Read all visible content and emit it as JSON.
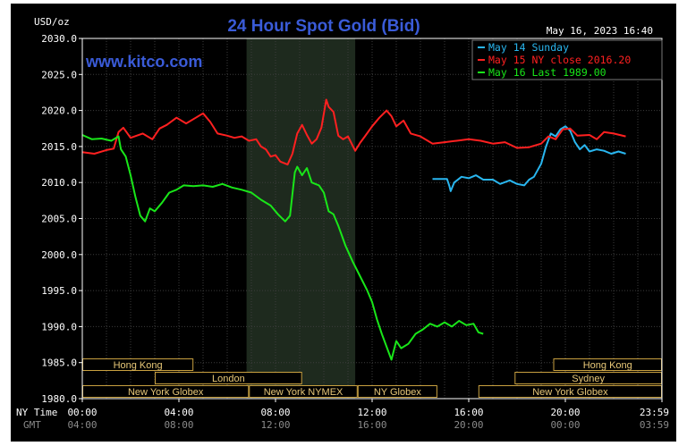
{
  "chart_data": {
    "type": "line",
    "title": "24 Hour Spot Gold (Bid)",
    "watermark": "www.kitco.com",
    "timestamp": "May 16, 2023 16:40",
    "ylabel": "USD/oz",
    "ylim": [
      1980,
      2030
    ],
    "y_ticks": [
      "2030.0",
      "2025.0",
      "2020.0",
      "2015.0",
      "2010.0",
      "2005.0",
      "2000.0",
      "1995.0",
      "1990.0",
      "1985.0",
      "1980.0"
    ],
    "xlim": [
      0,
      24
    ],
    "x_row_label_ny": "NY Time",
    "x_row_label_gmt": "GMT",
    "x_ticks_ny": [
      "00:00",
      "04:00",
      "08:00",
      "12:00",
      "16:00",
      "20:00",
      "23:59"
    ],
    "x_ticks_gmt": [
      "04:00",
      "08:00",
      "12:00",
      "16:00",
      "20:00",
      "00:00",
      "03:59"
    ],
    "x_tick_hours": [
      0,
      4,
      8,
      12,
      16,
      20,
      24
    ],
    "highlight_hours": [
      6.8,
      11.3
    ],
    "legend_position": "top-right",
    "sessions": [
      {
        "label": "Hong Kong",
        "row": 0,
        "start": 0,
        "end": 4.6
      },
      {
        "label": "London",
        "row": 1,
        "start": 3,
        "end": 9.1
      },
      {
        "label": "New York Globex",
        "row": 2,
        "start": 0,
        "end": 6.9
      },
      {
        "label": "New York NYMEX",
        "row": 2,
        "start": 6.9,
        "end": 11.4
      },
      {
        "label": "NY Globex",
        "row": 2,
        "start": 11.4,
        "end": 14.7
      },
      {
        "label": "Hong Kong",
        "row": 0,
        "start": 19.5,
        "end": 24
      },
      {
        "label": "Sydney",
        "row": 1,
        "start": 17.9,
        "end": 24
      },
      {
        "label": "New York Globex",
        "row": 2,
        "start": 16.4,
        "end": 24
      }
    ],
    "series": [
      {
        "name": "May 14 Sunday",
        "color": "#29b6ef",
        "points": [
          [
            14.5,
            2010.5
          ],
          [
            15.0,
            2010.5
          ],
          [
            15.1,
            2010.5
          ],
          [
            15.2,
            2009.5
          ],
          [
            15.25,
            2008.8
          ],
          [
            15.4,
            2010.0
          ],
          [
            15.7,
            2010.8
          ],
          [
            16.0,
            2010.6
          ],
          [
            16.3,
            2011.0
          ],
          [
            16.6,
            2010.4
          ],
          [
            17.0,
            2010.4
          ],
          [
            17.3,
            2009.8
          ],
          [
            17.7,
            2010.3
          ],
          [
            18.0,
            2009.8
          ],
          [
            18.3,
            2009.6
          ],
          [
            18.5,
            2010.4
          ],
          [
            18.7,
            2010.8
          ],
          [
            19.0,
            2012.6
          ],
          [
            19.2,
            2015.0
          ],
          [
            19.4,
            2016.8
          ],
          [
            19.6,
            2016.4
          ],
          [
            19.8,
            2017.4
          ],
          [
            20.0,
            2017.8
          ],
          [
            20.2,
            2017.2
          ],
          [
            20.4,
            2015.6
          ],
          [
            20.6,
            2014.6
          ],
          [
            20.8,
            2015.2
          ],
          [
            21.0,
            2014.3
          ],
          [
            21.3,
            2014.6
          ],
          [
            21.6,
            2014.4
          ],
          [
            21.9,
            2014.0
          ],
          [
            22.2,
            2014.3
          ],
          [
            22.5,
            2014.0
          ]
        ]
      },
      {
        "name": "May 15 NY close 2016.20",
        "color": "#ff2020",
        "points": [
          [
            0,
            2014.2
          ],
          [
            0.5,
            2014.0
          ],
          [
            1.0,
            2014.5
          ],
          [
            1.3,
            2014.7
          ],
          [
            1.5,
            2017.0
          ],
          [
            1.7,
            2017.6
          ],
          [
            2.0,
            2016.2
          ],
          [
            2.5,
            2016.8
          ],
          [
            2.9,
            2016.0
          ],
          [
            3.2,
            2017.5
          ],
          [
            3.5,
            2018.0
          ],
          [
            3.9,
            2019.0
          ],
          [
            4.3,
            2018.2
          ],
          [
            4.7,
            2019.0
          ],
          [
            5.0,
            2019.6
          ],
          [
            5.3,
            2018.4
          ],
          [
            5.6,
            2016.8
          ],
          [
            6.0,
            2016.5
          ],
          [
            6.3,
            2016.2
          ],
          [
            6.6,
            2016.4
          ],
          [
            6.9,
            2015.8
          ],
          [
            7.2,
            2016.0
          ],
          [
            7.4,
            2015.0
          ],
          [
            7.6,
            2014.6
          ],
          [
            7.8,
            2013.6
          ],
          [
            8.0,
            2013.8
          ],
          [
            8.2,
            2012.9
          ],
          [
            8.5,
            2012.5
          ],
          [
            8.7,
            2014.0
          ],
          [
            8.9,
            2016.8
          ],
          [
            9.1,
            2018.0
          ],
          [
            9.3,
            2016.6
          ],
          [
            9.5,
            2015.4
          ],
          [
            9.7,
            2016.0
          ],
          [
            9.9,
            2017.6
          ],
          [
            10.1,
            2021.5
          ],
          [
            10.2,
            2020.5
          ],
          [
            10.4,
            2019.8
          ],
          [
            10.6,
            2016.5
          ],
          [
            10.8,
            2016.0
          ],
          [
            11.0,
            2016.4
          ],
          [
            11.3,
            2014.4
          ],
          [
            11.5,
            2015.5
          ],
          [
            11.7,
            2016.4
          ],
          [
            12.0,
            2017.8
          ],
          [
            12.3,
            2019.0
          ],
          [
            12.6,
            2020.0
          ],
          [
            12.8,
            2019.2
          ],
          [
            13.0,
            2017.8
          ],
          [
            13.3,
            2018.6
          ],
          [
            13.6,
            2016.8
          ],
          [
            14.0,
            2016.4
          ],
          [
            14.5,
            2015.4
          ],
          [
            15.0,
            2015.6
          ],
          [
            15.5,
            2015.8
          ],
          [
            16.0,
            2016.0
          ],
          [
            16.5,
            2015.8
          ],
          [
            17.0,
            2015.4
          ],
          [
            17.5,
            2015.6
          ],
          [
            18.0,
            2014.8
          ],
          [
            18.5,
            2014.9
          ],
          [
            19.0,
            2015.4
          ],
          [
            19.3,
            2016.4
          ],
          [
            19.6,
            2016.0
          ],
          [
            19.9,
            2017.4
          ],
          [
            20.2,
            2017.5
          ],
          [
            20.5,
            2016.5
          ],
          [
            21.0,
            2016.6
          ],
          [
            21.3,
            2016.0
          ],
          [
            21.6,
            2017.0
          ],
          [
            22.0,
            2016.8
          ],
          [
            22.5,
            2016.4
          ]
        ]
      },
      {
        "name": "May 16 Last 1989.00",
        "color": "#19e619",
        "points": [
          [
            0,
            2016.6
          ],
          [
            0.4,
            2016.0
          ],
          [
            0.8,
            2016.1
          ],
          [
            1.2,
            2015.8
          ],
          [
            1.5,
            2016.4
          ],
          [
            1.6,
            2014.6
          ],
          [
            1.8,
            2013.6
          ],
          [
            2.0,
            2011.0
          ],
          [
            2.2,
            2008.0
          ],
          [
            2.4,
            2005.4
          ],
          [
            2.6,
            2004.6
          ],
          [
            2.8,
            2006.4
          ],
          [
            3.0,
            2006.0
          ],
          [
            3.3,
            2007.2
          ],
          [
            3.6,
            2008.6
          ],
          [
            3.9,
            2009.0
          ],
          [
            4.2,
            2009.6
          ],
          [
            4.6,
            2009.5
          ],
          [
            5.0,
            2009.6
          ],
          [
            5.4,
            2009.4
          ],
          [
            5.8,
            2009.8
          ],
          [
            6.2,
            2009.3
          ],
          [
            6.6,
            2009.0
          ],
          [
            7.0,
            2008.6
          ],
          [
            7.4,
            2007.6
          ],
          [
            7.8,
            2006.8
          ],
          [
            8.1,
            2005.6
          ],
          [
            8.4,
            2004.6
          ],
          [
            8.6,
            2005.4
          ],
          [
            8.8,
            2011.4
          ],
          [
            8.9,
            2012.2
          ],
          [
            9.1,
            2011.0
          ],
          [
            9.3,
            2012.0
          ],
          [
            9.5,
            2010.0
          ],
          [
            9.8,
            2009.6
          ],
          [
            10.0,
            2008.6
          ],
          [
            10.2,
            2006.0
          ],
          [
            10.4,
            2005.6
          ],
          [
            10.6,
            2004.0
          ],
          [
            10.9,
            2001.2
          ],
          [
            11.2,
            1999.0
          ],
          [
            11.5,
            1997.0
          ],
          [
            11.8,
            1995.0
          ],
          [
            12.0,
            1993.4
          ],
          [
            12.2,
            1991.0
          ],
          [
            12.4,
            1989.0
          ],
          [
            12.6,
            1987.2
          ],
          [
            12.8,
            1985.4
          ],
          [
            13.0,
            1988.0
          ],
          [
            13.2,
            1987.0
          ],
          [
            13.5,
            1987.6
          ],
          [
            13.8,
            1989.0
          ],
          [
            14.1,
            1989.6
          ],
          [
            14.4,
            1990.4
          ],
          [
            14.7,
            1990.0
          ],
          [
            15.0,
            1990.6
          ],
          [
            15.3,
            1990.0
          ],
          [
            15.6,
            1990.8
          ],
          [
            15.9,
            1990.2
          ],
          [
            16.2,
            1990.4
          ],
          [
            16.4,
            1989.2
          ],
          [
            16.6,
            1989.0
          ]
        ]
      }
    ]
  }
}
